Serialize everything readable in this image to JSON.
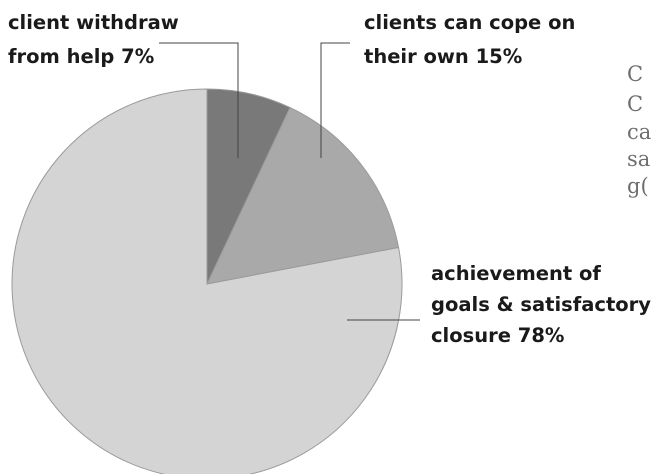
{
  "chart_data": {
    "type": "pie",
    "title": "",
    "start_angle_deg": 0,
    "direction": "clockwise",
    "slices": [
      {
        "label_lines": [
          "client withdraw",
          "from help 7%"
        ],
        "value": 7,
        "color": "#797979"
      },
      {
        "label_lines": [
          "clients can cope on",
          "their own 15%"
        ],
        "value": 15,
        "color": "#a9a9a9"
      },
      {
        "label_lines": [
          "achievement of",
          "goals & satisfactory",
          "closure 78%"
        ],
        "value": 78,
        "color": "#d4d4d4"
      }
    ],
    "slice_border_color": "#9a9a9a",
    "leader_color": "#444444"
  },
  "side_text": [
    "C",
    "C",
    "ca",
    "sa",
    "g("
  ]
}
